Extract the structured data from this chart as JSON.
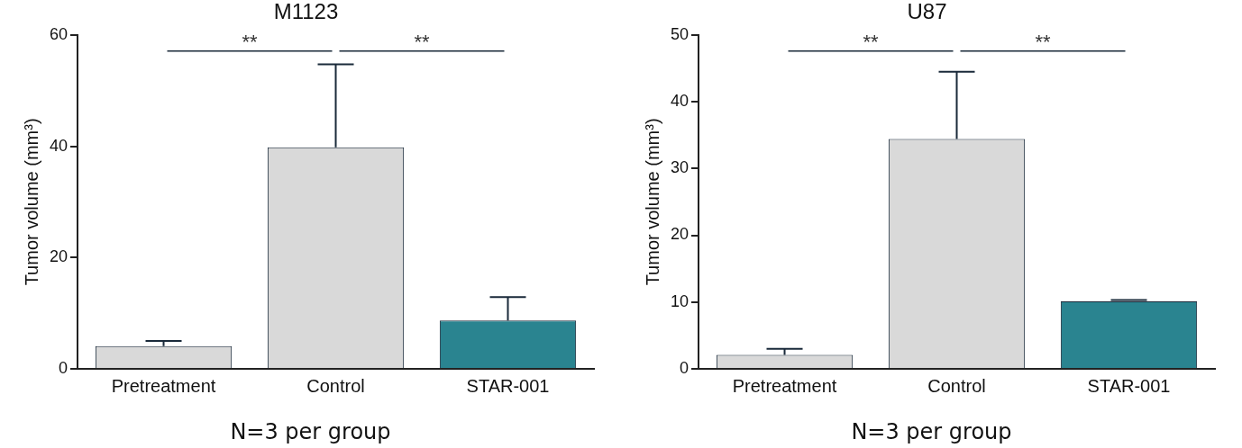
{
  "chart_data": [
    {
      "type": "bar",
      "title": "M1123",
      "ylabel": "Tumor volume (mm³)",
      "categories": [
        "Pretreatment",
        "Control",
        "STAR-001"
      ],
      "values": [
        4.1,
        39.8,
        8.7
      ],
      "colors": [
        "#d9d9d9",
        "#d9d9d9",
        "#2a8490"
      ],
      "errors": [
        [
          4.1,
          5.0
        ],
        [
          39.8,
          54.7
        ],
        [
          8.7,
          12.9
        ]
      ],
      "ylim": [
        0,
        60
      ],
      "yticks": [
        0,
        20,
        40,
        60
      ],
      "grid": false,
      "legend": false,
      "annotations": [
        "**",
        "**",
        "N=3 per group"
      ]
    },
    {
      "type": "bar",
      "title": "U87",
      "ylabel": "Tumor volume (mm³)",
      "categories": [
        "Pretreatment",
        "Control",
        "STAR-001"
      ],
      "values": [
        2.1,
        34.4,
        10.1
      ],
      "colors": [
        "#d9d9d9",
        "#d9d9d9",
        "#2a8490"
      ],
      "errors": [
        [
          2.1,
          3.0
        ],
        [
          34.4,
          44.5
        ],
        [
          10.1,
          10.3
        ]
      ],
      "ylim": [
        0,
        50
      ],
      "yticks": [
        0,
        10,
        20,
        30,
        40,
        50
      ],
      "grid": false,
      "legend": false,
      "annotations": [
        "**",
        "**",
        "N=3 per group"
      ]
    }
  ]
}
